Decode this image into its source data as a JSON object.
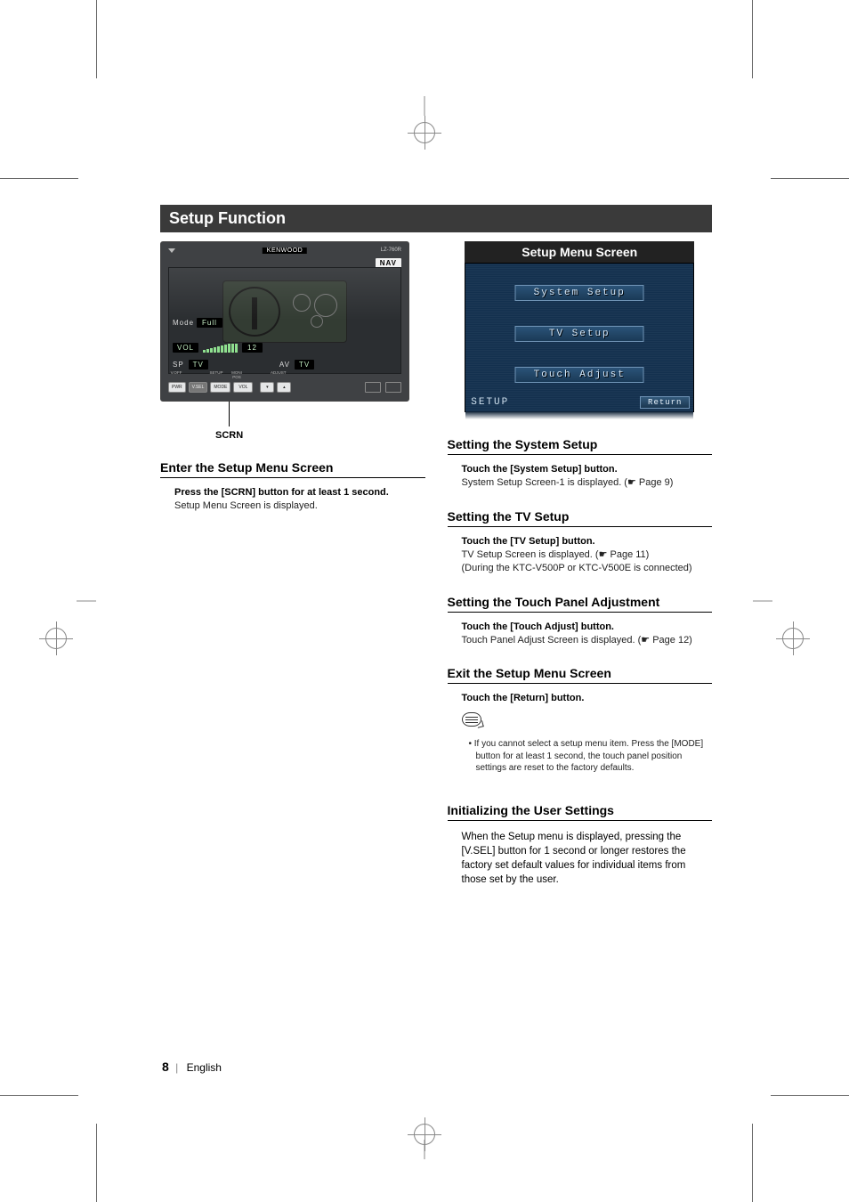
{
  "page": {
    "main_title": "Setup Function",
    "number": "8",
    "lang": "English"
  },
  "crop": {
    "mark_color": "#888888"
  },
  "device": {
    "brand": "KENWOOD",
    "model": "LZ-760R",
    "nav_label": "NAV",
    "mode_label": "Mode",
    "mode_value": "Full",
    "vol_label": "VOL",
    "vol_value": "12",
    "vol_bars": [
      3,
      4,
      5,
      6,
      7,
      8,
      9,
      10,
      10,
      10
    ],
    "sp_label": "SP",
    "tv_label_1": "TV",
    "av_label": "AV",
    "tv_label_2": "TV",
    "phys": {
      "top_labels": [
        "V.OFF",
        "SETUP",
        "MONI POS",
        "ADJUST"
      ],
      "buttons": [
        "PWR",
        "V.SEL",
        "MODE",
        "VOL",
        "▾",
        "▴"
      ]
    },
    "callout": "SCRN"
  },
  "left": {
    "h1": "Enter the Setup Menu Screen",
    "instr": "Press the [SCRN] button for at least 1 second.",
    "desc": "Setup Menu Screen is displayed."
  },
  "right": {
    "menu_header": "Setup Menu Screen",
    "menu": {
      "btn1": "System Setup",
      "btn2": "TV Setup",
      "btn3": "Touch Adjust",
      "footer": "SETUP",
      "return": "Return",
      "bg": "#13304e",
      "btn_border": "#6e92b4"
    },
    "s1_h": "Setting the System Setup",
    "s1_instr": "Touch the [System Setup] button.",
    "s1_desc": "System Setup Screen-1 is displayed. (☛ Page 9)",
    "s2_h": "Setting the TV Setup",
    "s2_instr": "Touch the [TV Setup] button.",
    "s2_desc1": "TV Setup Screen is displayed. (☛ Page 11)",
    "s2_desc2": "(During the KTC-V500P or KTC-V500E is connected)",
    "s3_h": "Setting the Touch Panel Adjustment",
    "s3_instr": "Touch the [Touch Adjust] button.",
    "s3_desc": "Touch Panel Adjust Screen is displayed. (☛ Page 12)",
    "s4_h": "Exit the Setup Menu Screen",
    "s4_instr": "Touch the [Return] button.",
    "note": "•  If you cannot select a setup menu item. Press the [MODE] button for at least 1 second, the touch panel position settings are reset to the factory defaults.",
    "s5_h": "Initializing the User Settings",
    "s5_body": "When the Setup menu is displayed,  pressing the [V.SEL] button for 1 second or longer restores the factory set default values for individual items from those set by the user."
  }
}
